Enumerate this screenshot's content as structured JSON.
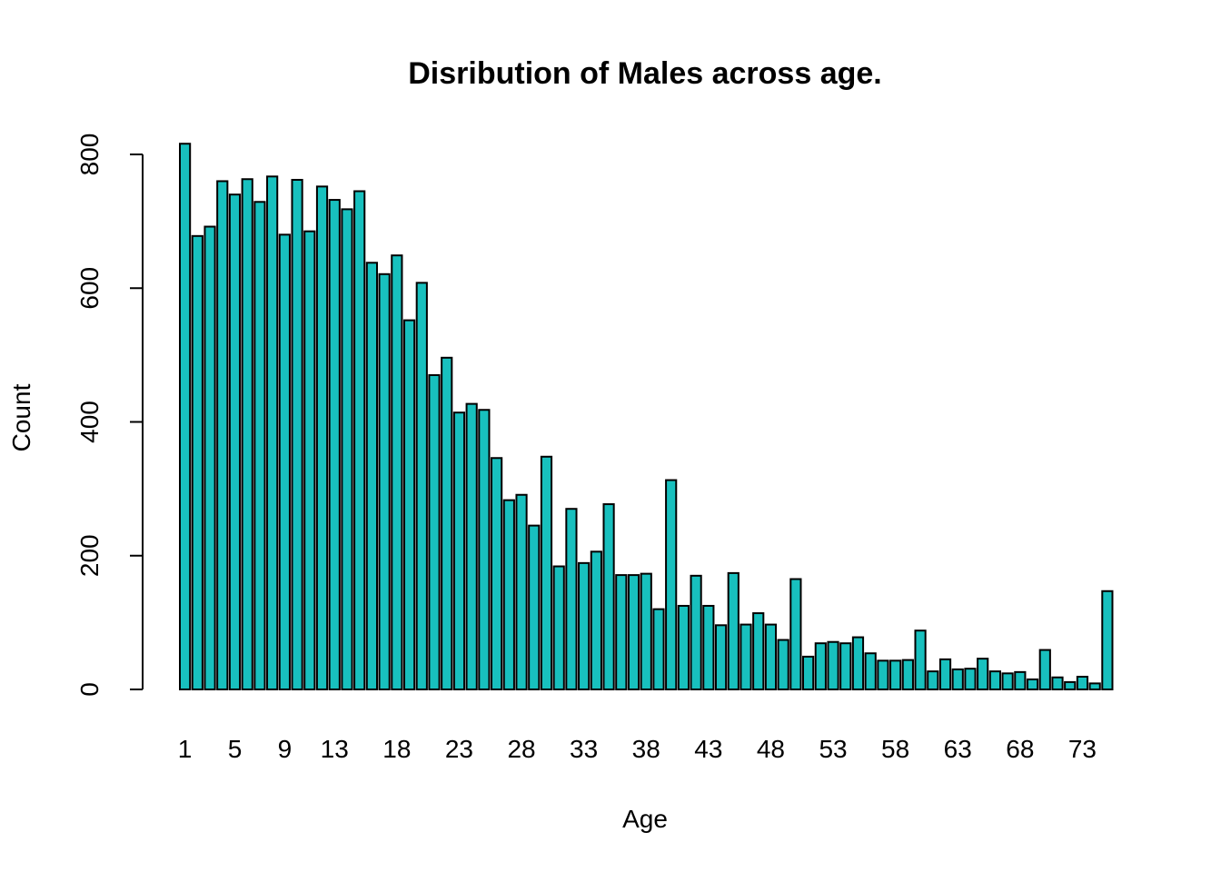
{
  "chart_data": {
    "type": "bar",
    "title": "Disribution of Males across age.",
    "xlabel": "Age",
    "ylabel": "Count",
    "ylim": [
      0,
      800
    ],
    "yticks": [
      0,
      200,
      400,
      600,
      800
    ],
    "xtick_labels": [
      "1",
      "5",
      "9",
      "13",
      "18",
      "23",
      "28",
      "33",
      "38",
      "43",
      "48",
      "53",
      "58",
      "63",
      "68",
      "73"
    ],
    "bar_color": "#18c0be",
    "categories": [
      "1",
      "2",
      "3",
      "4",
      "5",
      "6",
      "7",
      "8",
      "9",
      "10",
      "11",
      "12",
      "13",
      "14",
      "15",
      "16",
      "17",
      "18",
      "19",
      "20",
      "21",
      "22",
      "23",
      "24",
      "25",
      "26",
      "27",
      "28",
      "29",
      "30",
      "31",
      "32",
      "33",
      "34",
      "35",
      "36",
      "37",
      "38",
      "39",
      "40",
      "41",
      "42",
      "43",
      "44",
      "45",
      "46",
      "47",
      "48",
      "49",
      "50",
      "51",
      "52",
      "53",
      "54",
      "55",
      "56",
      "57",
      "58",
      "59",
      "60",
      "61",
      "62",
      "63",
      "64",
      "65",
      "66",
      "67",
      "68",
      "69",
      "70",
      "71",
      "72",
      "73",
      "74",
      "75"
    ],
    "values": [
      816,
      678,
      692,
      760,
      740,
      763,
      729,
      767,
      680,
      762,
      685,
      752,
      732,
      718,
      745,
      638,
      621,
      649,
      552,
      608,
      470,
      496,
      414,
      427,
      418,
      346,
      283,
      291,
      245,
      348,
      184,
      270,
      189,
      206,
      277,
      171,
      171,
      173,
      120,
      313,
      125,
      170,
      125,
      96,
      174,
      97,
      114,
      97,
      74,
      165,
      49,
      69,
      71,
      69,
      78,
      54,
      43,
      43,
      44,
      88,
      27,
      45,
      30,
      31,
      46,
      27,
      24,
      26,
      15,
      59,
      18,
      11,
      19,
      9,
      147
    ]
  }
}
